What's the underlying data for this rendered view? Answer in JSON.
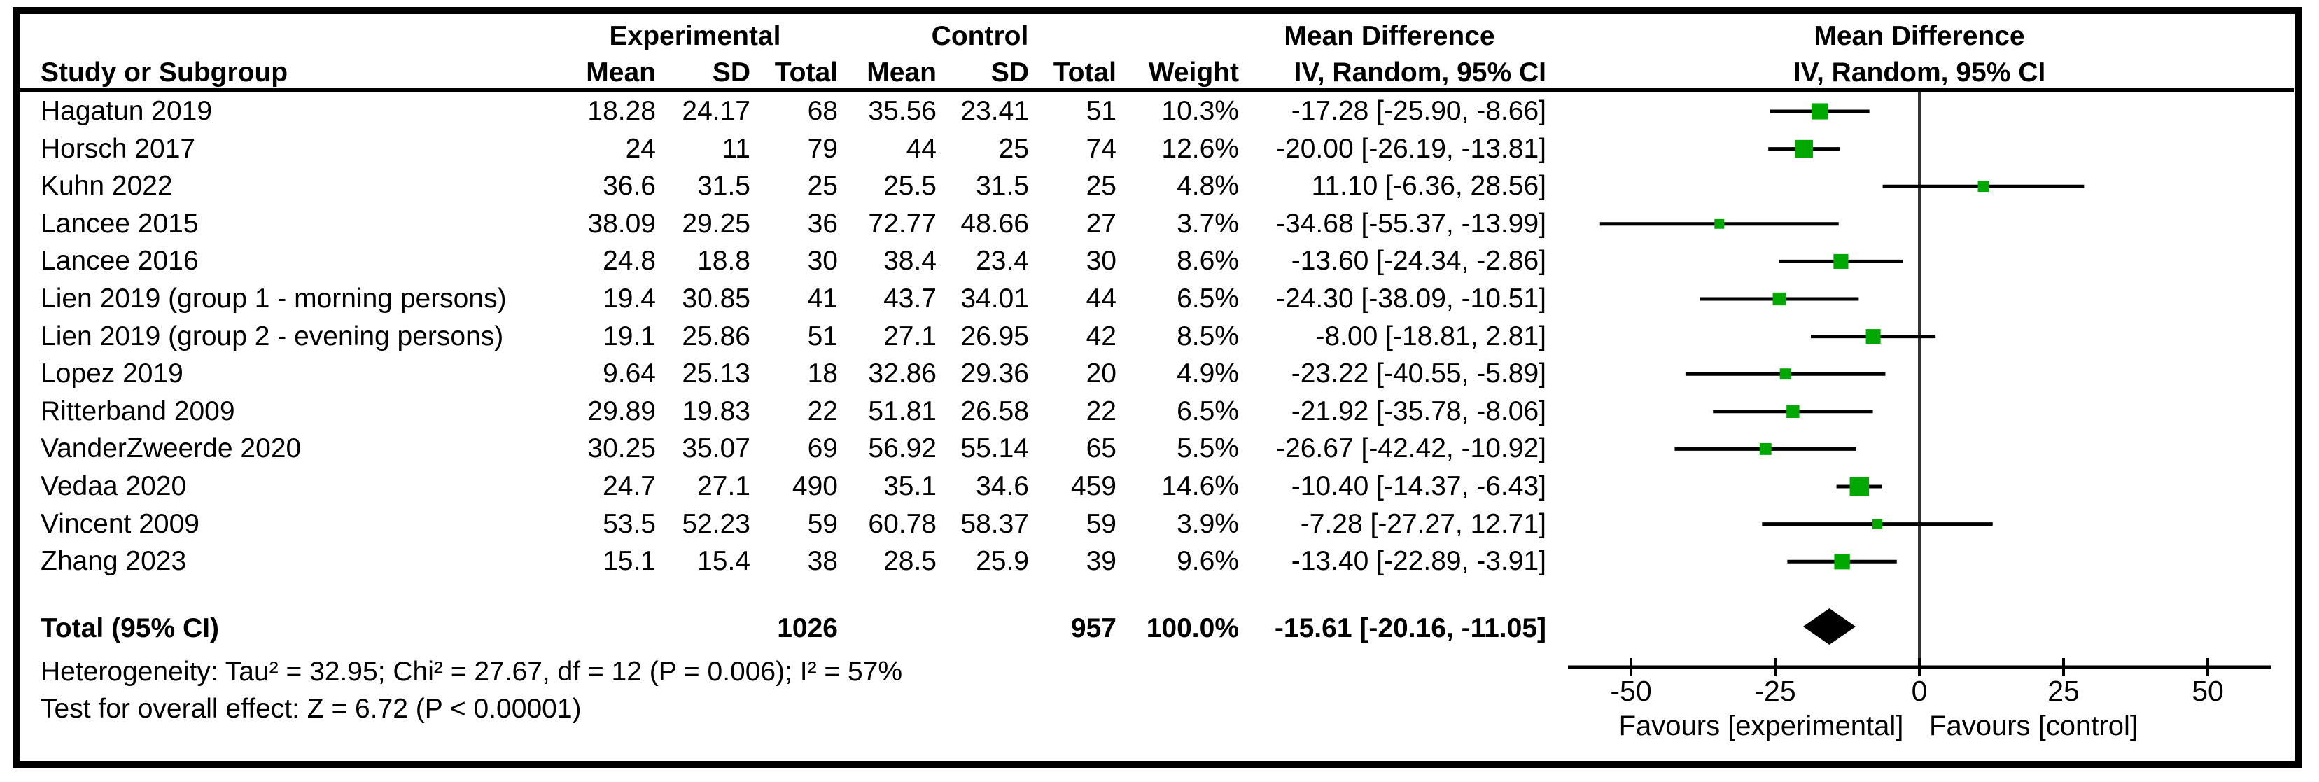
{
  "header": {
    "experimental": "Experimental",
    "control": "Control",
    "mean_difference": "Mean Difference",
    "study": "Study or Subgroup",
    "mean": "Mean",
    "sd": "SD",
    "total": "Total",
    "weight": "Weight",
    "ci": "IV, Random, 95% CI"
  },
  "rows": [
    {
      "name": "Hagatun 2019",
      "exp_mean": "18.28",
      "exp_sd": "24.17",
      "exp_total": "68",
      "ctrl_mean": "35.56",
      "ctrl_sd": "23.41",
      "ctrl_total": "51",
      "weight": "10.3%",
      "md_ci": "-17.28 [-25.90, -8.66]"
    },
    {
      "name": "Horsch 2017",
      "exp_mean": "24",
      "exp_sd": "11",
      "exp_total": "79",
      "ctrl_mean": "44",
      "ctrl_sd": "25",
      "ctrl_total": "74",
      "weight": "12.6%",
      "md_ci": "-20.00 [-26.19, -13.81]"
    },
    {
      "name": "Kuhn 2022",
      "exp_mean": "36.6",
      "exp_sd": "31.5",
      "exp_total": "25",
      "ctrl_mean": "25.5",
      "ctrl_sd": "31.5",
      "ctrl_total": "25",
      "weight": "4.8%",
      "md_ci": "11.10 [-6.36, 28.56]"
    },
    {
      "name": "Lancee 2015",
      "exp_mean": "38.09",
      "exp_sd": "29.25",
      "exp_total": "36",
      "ctrl_mean": "72.77",
      "ctrl_sd": "48.66",
      "ctrl_total": "27",
      "weight": "3.7%",
      "md_ci": "-34.68 [-55.37, -13.99]"
    },
    {
      "name": "Lancee 2016",
      "exp_mean": "24.8",
      "exp_sd": "18.8",
      "exp_total": "30",
      "ctrl_mean": "38.4",
      "ctrl_sd": "23.4",
      "ctrl_total": "30",
      "weight": "8.6%",
      "md_ci": "-13.60 [-24.34, -2.86]"
    },
    {
      "name": "Lien 2019 (group 1 - morning persons)",
      "exp_mean": "19.4",
      "exp_sd": "30.85",
      "exp_total": "41",
      "ctrl_mean": "43.7",
      "ctrl_sd": "34.01",
      "ctrl_total": "44",
      "weight": "6.5%",
      "md_ci": "-24.30 [-38.09, -10.51]"
    },
    {
      "name": "Lien 2019 (group 2 - evening persons)",
      "exp_mean": "19.1",
      "exp_sd": "25.86",
      "exp_total": "51",
      "ctrl_mean": "27.1",
      "ctrl_sd": "26.95",
      "ctrl_total": "42",
      "weight": "8.5%",
      "md_ci": "-8.00 [-18.81, 2.81]"
    },
    {
      "name": "Lopez 2019",
      "exp_mean": "9.64",
      "exp_sd": "25.13",
      "exp_total": "18",
      "ctrl_mean": "32.86",
      "ctrl_sd": "29.36",
      "ctrl_total": "20",
      "weight": "4.9%",
      "md_ci": "-23.22 [-40.55, -5.89]"
    },
    {
      "name": "Ritterband 2009",
      "exp_mean": "29.89",
      "exp_sd": "19.83",
      "exp_total": "22",
      "ctrl_mean": "51.81",
      "ctrl_sd": "26.58",
      "ctrl_total": "22",
      "weight": "6.5%",
      "md_ci": "-21.92 [-35.78, -8.06]"
    },
    {
      "name": "VanderZweerde 2020",
      "exp_mean": "30.25",
      "exp_sd": "35.07",
      "exp_total": "69",
      "ctrl_mean": "56.92",
      "ctrl_sd": "55.14",
      "ctrl_total": "65",
      "weight": "5.5%",
      "md_ci": "-26.67 [-42.42, -10.92]"
    },
    {
      "name": "Vedaa 2020",
      "exp_mean": "24.7",
      "exp_sd": "27.1",
      "exp_total": "490",
      "ctrl_mean": "35.1",
      "ctrl_sd": "34.6",
      "ctrl_total": "459",
      "weight": "14.6%",
      "md_ci": "-10.40 [-14.37, -6.43]"
    },
    {
      "name": "Vincent 2009",
      "exp_mean": "53.5",
      "exp_sd": "52.23",
      "exp_total": "59",
      "ctrl_mean": "60.78",
      "ctrl_sd": "58.37",
      "ctrl_total": "59",
      "weight": "3.9%",
      "md_ci": "-7.28 [-27.27, 12.71]"
    },
    {
      "name": "Zhang 2023",
      "exp_mean": "15.1",
      "exp_sd": "15.4",
      "exp_total": "38",
      "ctrl_mean": "28.5",
      "ctrl_sd": "25.9",
      "ctrl_total": "39",
      "weight": "9.6%",
      "md_ci": "-13.40 [-22.89, -3.91]"
    }
  ],
  "totals": {
    "label": "Total (95% CI)",
    "exp_total": "1026",
    "ctrl_total": "957",
    "weight": "100.0%",
    "md_ci": "-15.61 [-20.16, -11.05]"
  },
  "footnotes": {
    "heterogeneity": "Heterogeneity: Tau² = 32.95; Chi² = 27.67, df = 12 (P = 0.006); I² = 57%",
    "overall_effect": "Test for overall effect: Z = 6.72 (P < 0.00001)"
  },
  "colors": {
    "marker_green": "#00A800",
    "ci_line": "#000000",
    "zero_line": "#333333",
    "axis": "#000000",
    "text": "#000000",
    "border": "#000000"
  },
  "chart_data": {
    "type": "scatter",
    "subtype": "forest-plot-mean-difference",
    "effect_measure": "Mean Difference, IV, Random, 95% CI",
    "x_ticks": [
      -50,
      -25,
      0,
      25,
      50
    ],
    "x_tick_labels": [
      "-50",
      "-25",
      "0",
      "25",
      "50"
    ],
    "xlim": [
      -61,
      61
    ],
    "grid": false,
    "favours_left": "Favours [experimental]",
    "favours_right": "Favours [control]",
    "studies": [
      {
        "name": "Hagatun 2019",
        "md": -17.28,
        "lo": -25.9,
        "hi": -8.66,
        "weight_pct": 10.3
      },
      {
        "name": "Horsch 2017",
        "md": -20.0,
        "lo": -26.19,
        "hi": -13.81,
        "weight_pct": 12.6
      },
      {
        "name": "Kuhn 2022",
        "md": 11.1,
        "lo": -6.36,
        "hi": 28.56,
        "weight_pct": 4.8
      },
      {
        "name": "Lancee 2015",
        "md": -34.68,
        "lo": -55.37,
        "hi": -13.99,
        "weight_pct": 3.7
      },
      {
        "name": "Lancee 2016",
        "md": -13.6,
        "lo": -24.34,
        "hi": -2.86,
        "weight_pct": 8.6
      },
      {
        "name": "Lien 2019 (group 1 - morning persons)",
        "md": -24.3,
        "lo": -38.09,
        "hi": -10.51,
        "weight_pct": 6.5
      },
      {
        "name": "Lien 2019 (group 2 - evening persons)",
        "md": -8.0,
        "lo": -18.81,
        "hi": 2.81,
        "weight_pct": 8.5
      },
      {
        "name": "Lopez 2019",
        "md": -23.22,
        "lo": -40.55,
        "hi": -5.89,
        "weight_pct": 4.9
      },
      {
        "name": "Ritterband 2009",
        "md": -21.92,
        "lo": -35.78,
        "hi": -8.06,
        "weight_pct": 6.5
      },
      {
        "name": "VanderZweerde 2020",
        "md": -26.67,
        "lo": -42.42,
        "hi": -10.92,
        "weight_pct": 5.5
      },
      {
        "name": "Vedaa 2020",
        "md": -10.4,
        "lo": -14.37,
        "hi": -6.43,
        "weight_pct": 14.6
      },
      {
        "name": "Vincent 2009",
        "md": -7.28,
        "lo": -27.27,
        "hi": 12.71,
        "weight_pct": 3.9
      },
      {
        "name": "Zhang 2023",
        "md": -13.4,
        "lo": -22.89,
        "hi": -3.91,
        "weight_pct": 9.6
      }
    ],
    "total": {
      "label": "Total (95% CI)",
      "md": -15.61,
      "lo": -20.16,
      "hi": -11.05,
      "weight_pct": 100.0
    }
  }
}
